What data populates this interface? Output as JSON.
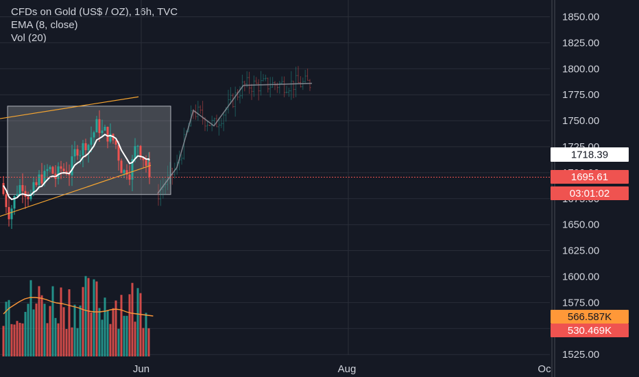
{
  "legend": {
    "title": "CFDs on Gold (US$ / OZ), 16h, TVC",
    "ema": "EMA (8, close)",
    "vol": "Vol (20)"
  },
  "chart_data": {
    "type": "candlestick",
    "title": "CFDs on Gold (US$ / OZ), 16h, TVC",
    "y_ticks": [
      "1850.00",
      "1825.00",
      "1800.00",
      "1775.00",
      "1750.00",
      "1725.00",
      "1700.00",
      "1675.00",
      "1650.00",
      "1625.00",
      "1600.00",
      "1575.00",
      "1550.00",
      "1525.00"
    ],
    "y_tick_values": [
      1850,
      1825,
      1800,
      1775,
      1750,
      1725,
      1700,
      1675,
      1650,
      1625,
      1600,
      1575,
      1550,
      1525
    ],
    "ylim": [
      1522,
      1864
    ],
    "x_ticks": [
      "Jun",
      "Aug",
      "Oc"
    ],
    "grid": true,
    "price_badges": [
      {
        "label": "1718.39",
        "value": 1718.39,
        "style": "marker"
      },
      {
        "label": "1695.61",
        "value": 1695.61,
        "style": "last-price"
      },
      {
        "label": "03:01:02",
        "style": "countdown"
      },
      {
        "label": "566.587K",
        "style": "volume-ma"
      },
      {
        "label": "530.469K",
        "style": "volume"
      }
    ],
    "colors": {
      "up": "#26a69a",
      "down": "#ef5350",
      "ema": "#ffffff",
      "channel": "#f7a631",
      "volume_ma": "#ff9838",
      "background": "#151924",
      "grid": "#2a2e39"
    }
  }
}
